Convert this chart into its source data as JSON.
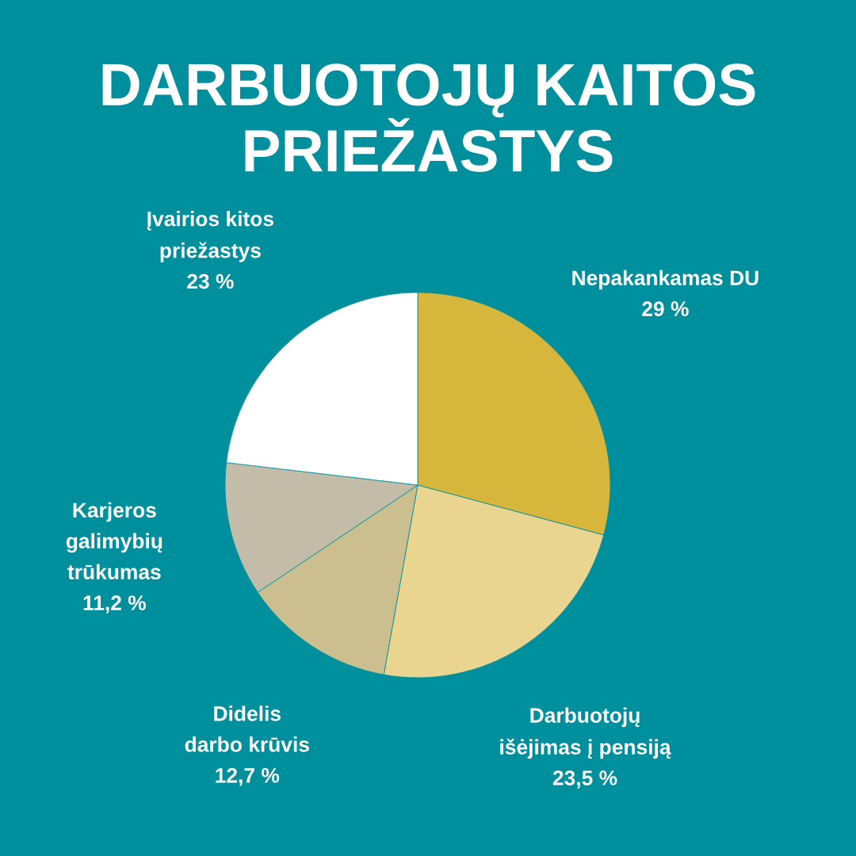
{
  "chart_data": {
    "type": "pie",
    "title": "DARBUOTOJŲ KAITOS\nPRIEŽASTYS",
    "categories": [
      "Nepakankamas DU",
      "Darbuotojų\nišėjimas į pensiją",
      "Didelis\ndarbo krūvis",
      "Karjeros\ngalimybių\ntrūkumas",
      "Įvairios kitos\npriežastys"
    ],
    "values": [
      29,
      23.5,
      12.7,
      11.2,
      23
    ],
    "colors": [
      "#d7b63c",
      "#e9d58f",
      "#ccbf8f",
      "#c3bca8",
      "#ffffff"
    ],
    "value_labels": [
      "29 %",
      "23,5 %",
      "12,7 %",
      "11,2 %",
      "23 %"
    ]
  }
}
